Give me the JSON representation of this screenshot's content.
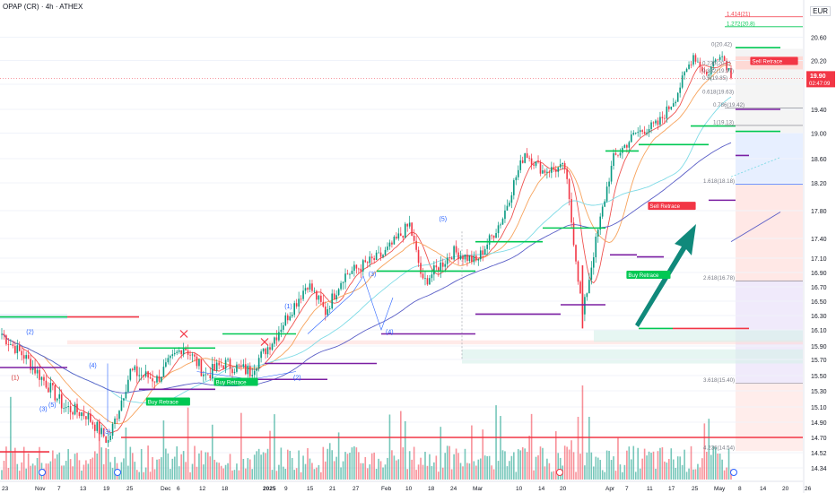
{
  "header": {
    "title": "OPAP (CR) · 4h · ATHEX",
    "currency": "EUR"
  },
  "price_tag": {
    "value": "19.90",
    "countdown": "02:47:09",
    "color": "#f23645"
  },
  "colors": {
    "up": "#089981",
    "down": "#f23645",
    "ma_fast": "#ef5350",
    "ma_mid": "#f7a35c",
    "ma_slow_cyan": "#7fdbe6",
    "ma_slow_blue": "#5b5fc7",
    "arrow": "#10897b"
  },
  "chart_data": {
    "type": "candlestick",
    "y_ticks": [
      "20.60",
      "20.20",
      "19.80",
      "19.40",
      "19.00",
      "18.60",
      "18.20",
      "17.80",
      "17.40",
      "17.10",
      "16.90",
      "16.70",
      "16.50",
      "16.30",
      "16.10",
      "15.90",
      "15.70",
      "15.50",
      "15.30",
      "15.10",
      "14.90",
      "14.70",
      "14.52",
      "14.34"
    ],
    "x_ticks": [
      "23",
      "Nov",
      "7",
      "13",
      "19",
      "25",
      "Dec",
      "6",
      "12",
      "18",
      "2025",
      "9",
      "15",
      "21",
      "27",
      "Feb",
      "10",
      "18",
      "24",
      "Mar",
      "10",
      "14",
      "20",
      "Apr",
      "7",
      "11",
      "17",
      "25",
      "May",
      "8",
      "14",
      "20",
      "26"
    ],
    "start_price": 15.9,
    "end_price": 19.9,
    "candles": 330,
    "wave_labels": [
      {
        "text": "(2)",
        "date": "Oct 28",
        "price": 16.05
      },
      {
        "text": "(1)",
        "date": "Oct 24",
        "price": 15.45
      },
      {
        "text": "(3)",
        "date": "Nov 1",
        "price": 15.05
      },
      {
        "text": "(4)",
        "date": "Nov 14",
        "price": 15.6
      },
      {
        "text": "(5)",
        "date": "Nov 4",
        "price": 15.1
      },
      {
        "text": "(3)",
        "date": "Nov 18",
        "price": 14.75
      },
      {
        "text": "(1)",
        "date": "Jan 8",
        "price": 16.4
      },
      {
        "text": "(2)",
        "date": "Jan 10",
        "price": 15.45
      },
      {
        "text": "(3)",
        "date": "Jan 29",
        "price": 16.85
      },
      {
        "text": "(4)",
        "date": "Feb 1",
        "price": 16.05
      },
      {
        "text": "(5)",
        "date": "Feb 20",
        "price": 17.65
      }
    ],
    "signals": [
      {
        "text": "Buy Retrace",
        "color": "#00c853",
        "date": "Nov 29",
        "price": 15.15
      },
      {
        "text": "Buy Retrace",
        "color": "#00c853",
        "date": "Dec 16",
        "price": 15.4
      },
      {
        "text": "Buy Retrace",
        "color": "#00c853",
        "date": "Apr 8",
        "price": 16.85
      },
      {
        "text": "Sell Retrace",
        "color": "#f23645",
        "date": "Apr 12",
        "price": 17.85
      },
      {
        "text": "Sell Retrace",
        "color": "#f23645",
        "date": "May 13",
        "price": 20.17
      }
    ],
    "fib_labels": [
      {
        "text": "1.414(21)",
        "price": 20.95
      },
      {
        "text": "1.272(20.8)",
        "price": 20.78
      },
      {
        "text": "0(20.42)",
        "price": 20.42
      },
      {
        "text": "0.236(20.1)",
        "price": 20.1
      },
      {
        "text": "0.382(19.97)",
        "price": 19.97
      },
      {
        "text": "0.5(19.85)",
        "price": 19.85
      },
      {
        "text": "0.618(19.63)",
        "price": 19.63
      },
      {
        "text": "0.786(19.42)",
        "price": 19.42
      },
      {
        "text": "1(19.13)",
        "price": 19.13
      },
      {
        "text": "1.618(18.18)",
        "price": 18.18
      },
      {
        "text": "2.618(16.78)",
        "price": 16.78
      },
      {
        "text": "3.618(15.40)",
        "price": 15.4
      },
      {
        "text": "4.236(14.54)",
        "price": 14.54
      }
    ]
  }
}
